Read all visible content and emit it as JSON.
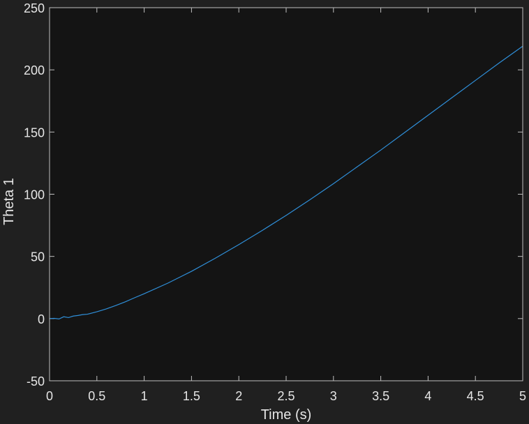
{
  "chart_data": {
    "type": "line",
    "xlabel": "Time (s)",
    "ylabel": "Theta 1",
    "xlim": [
      0,
      5
    ],
    "ylim": [
      -50,
      250
    ],
    "xticks": [
      "0",
      "0.5",
      "1",
      "1.5",
      "2",
      "2.5",
      "3",
      "3.5",
      "4",
      "4.5",
      "5"
    ],
    "yticks": [
      "-50",
      "0",
      "50",
      "100",
      "150",
      "200",
      "250"
    ],
    "grid": false,
    "colors": {
      "figure_background": "#202020",
      "axes_background": "#141414",
      "axis_color": "#bfbfbf",
      "text_color": "#e6e6e6",
      "series_color": "#2f8fd9"
    },
    "series": [
      {
        "x": [
          0,
          0.05,
          0.1,
          0.15,
          0.2,
          0.25,
          0.3,
          0.35,
          0.4,
          0.5,
          0.6,
          0.7,
          0.8,
          0.9,
          1.0,
          1.25,
          1.5,
          1.75,
          2.0,
          2.25,
          2.5,
          2.75,
          3.0,
          3.25,
          3.5,
          3.75,
          4.0,
          4.25,
          4.5,
          4.75,
          5.0
        ],
        "values": [
          0,
          0.2,
          -0.3,
          1.5,
          0.8,
          2.0,
          2.5,
          3.2,
          3.5,
          5.5,
          7.8,
          10.5,
          13.5,
          16.8,
          20,
          28.5,
          38,
          48.5,
          59.5,
          71,
          83,
          95.5,
          108.5,
          122,
          135.5,
          149.5,
          163.5,
          177.5,
          191.5,
          205.5,
          219
        ]
      }
    ]
  }
}
